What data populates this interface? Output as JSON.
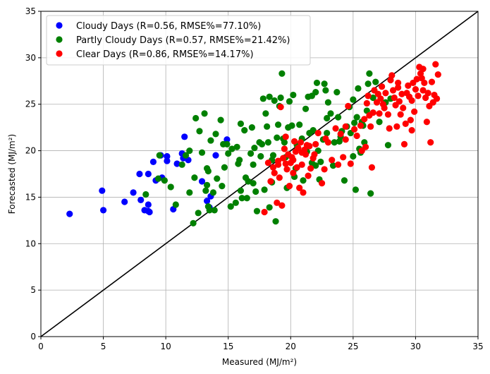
{
  "chart_data": {
    "type": "scatter",
    "xlabel": "Measured (MJ/m²)",
    "ylabel": "Forecasted (MJ/m²)",
    "xlim": [
      0,
      35
    ],
    "ylim": [
      0,
      35
    ],
    "xticks": [
      "0",
      "5",
      "10",
      "15",
      "20",
      "25",
      "30",
      "35"
    ],
    "yticks": [
      "0",
      "5",
      "10",
      "15",
      "20",
      "25",
      "30",
      "35"
    ],
    "grid": true,
    "legend_position": "top-left",
    "reference_line": {
      "from": [
        0,
        0
      ],
      "to": [
        35,
        35
      ],
      "color": "#000000"
    },
    "series": [
      {
        "name": "Cloudy Days (R=0.56, RMSE%=77.10%)",
        "color": "#0000ff",
        "points": [
          [
            2.3,
            13.2
          ],
          [
            4.9,
            15.7
          ],
          [
            5.0,
            13.6
          ],
          [
            6.7,
            14.5
          ],
          [
            7.4,
            15.5
          ],
          [
            7.9,
            17.5
          ],
          [
            8.0,
            14.7
          ],
          [
            8.3,
            13.6
          ],
          [
            8.6,
            17.5
          ],
          [
            8.6,
            14.2
          ],
          [
            8.6,
            13.5
          ],
          [
            8.7,
            13.4
          ],
          [
            9.0,
            18.8
          ],
          [
            9.2,
            16.8
          ],
          [
            9.6,
            19.5
          ],
          [
            9.7,
            17.1
          ],
          [
            10.1,
            19.4
          ],
          [
            10.1,
            18.9
          ],
          [
            10.6,
            13.7
          ],
          [
            10.9,
            18.6
          ],
          [
            11.3,
            19.7
          ],
          [
            11.5,
            21.5
          ],
          [
            11.8,
            19.0
          ],
          [
            12.9,
            16.7
          ],
          [
            13.3,
            14.6
          ],
          [
            13.5,
            13.9
          ],
          [
            13.6,
            15.1
          ],
          [
            14.0,
            19.5
          ],
          [
            14.9,
            21.2
          ],
          [
            11.4,
            19.2
          ]
        ]
      },
      {
        "name": "Partly Cloudy Days (R=0.57, RMSE%=21.42%)",
        "color": "#008000",
        "points": [
          [
            8.4,
            15.3
          ],
          [
            9.4,
            17.0
          ],
          [
            9.5,
            19.5
          ],
          [
            9.9,
            16.8
          ],
          [
            10.4,
            16.1
          ],
          [
            10.8,
            14.2
          ],
          [
            11.3,
            18.5
          ],
          [
            11.6,
            19.5
          ],
          [
            11.9,
            20.0
          ],
          [
            11.9,
            15.5
          ],
          [
            12.2,
            12.2
          ],
          [
            12.3,
            17.1
          ],
          [
            12.4,
            23.5
          ],
          [
            12.6,
            13.3
          ],
          [
            12.7,
            22.1
          ],
          [
            12.9,
            19.8
          ],
          [
            13.1,
            24.0
          ],
          [
            13.2,
            15.7
          ],
          [
            13.3,
            18.1
          ],
          [
            13.3,
            16.3
          ],
          [
            13.4,
            17.8
          ],
          [
            13.4,
            14.0
          ],
          [
            13.5,
            13.6
          ],
          [
            13.6,
            21.1
          ],
          [
            13.8,
            15.5
          ],
          [
            13.9,
            13.6
          ],
          [
            14.0,
            21.8
          ],
          [
            14.1,
            17.0
          ],
          [
            14.4,
            23.3
          ],
          [
            14.5,
            16.2
          ],
          [
            14.6,
            20.7
          ],
          [
            14.7,
            18.2
          ],
          [
            14.9,
            20.7
          ],
          [
            15.0,
            19.7
          ],
          [
            15.2,
            14.0
          ],
          [
            15.3,
            20.2
          ],
          [
            15.6,
            14.4
          ],
          [
            15.7,
            20.4
          ],
          [
            15.8,
            18.6
          ],
          [
            16.0,
            22.9
          ],
          [
            16.0,
            15.7
          ],
          [
            16.1,
            14.9
          ],
          [
            16.3,
            22.2
          ],
          [
            16.4,
            17.1
          ],
          [
            16.5,
            14.9
          ],
          [
            16.6,
            16.7
          ],
          [
            16.8,
            19.7
          ],
          [
            16.9,
            22.5
          ],
          [
            17.0,
            18.5
          ],
          [
            17.0,
            16.5
          ],
          [
            17.1,
            20.3
          ],
          [
            17.2,
            15.6
          ],
          [
            17.3,
            13.5
          ],
          [
            17.5,
            20.9
          ],
          [
            17.6,
            19.4
          ],
          [
            17.8,
            25.6
          ],
          [
            17.9,
            15.8
          ],
          [
            18.0,
            24.0
          ],
          [
            18.1,
            22.6
          ],
          [
            18.2,
            20.9
          ],
          [
            18.3,
            25.8
          ],
          [
            18.3,
            13.9
          ],
          [
            18.5,
            16.6
          ],
          [
            18.6,
            19.5
          ],
          [
            18.7,
            25.4
          ],
          [
            18.8,
            12.4
          ],
          [
            18.9,
            21.4
          ],
          [
            19.0,
            22.8
          ],
          [
            19.1,
            24.8
          ],
          [
            19.2,
            25.7
          ],
          [
            19.3,
            28.3
          ],
          [
            19.4,
            21.3
          ],
          [
            19.6,
            19.3
          ],
          [
            19.7,
            16.0
          ],
          [
            19.8,
            22.5
          ],
          [
            19.9,
            25.3
          ],
          [
            20.1,
            22.7
          ],
          [
            20.2,
            26.0
          ],
          [
            20.3,
            17.2
          ],
          [
            20.5,
            20.6
          ],
          [
            20.7,
            22.8
          ],
          [
            20.9,
            21.3
          ],
          [
            21.0,
            16.8
          ],
          [
            21.2,
            24.5
          ],
          [
            21.3,
            19.9
          ],
          [
            21.4,
            25.8
          ],
          [
            21.5,
            21.9
          ],
          [
            21.7,
            25.9
          ],
          [
            21.8,
            22.2
          ],
          [
            22.0,
            18.4
          ],
          [
            22.0,
            26.3
          ],
          [
            22.1,
            27.3
          ],
          [
            22.2,
            20.0
          ],
          [
            22.3,
            16.9
          ],
          [
            22.4,
            18.8
          ],
          [
            22.6,
            21.2
          ],
          [
            22.7,
            27.2
          ],
          [
            22.8,
            26.5
          ],
          [
            22.9,
            23.5
          ],
          [
            23.0,
            25.2
          ],
          [
            23.2,
            24.0
          ],
          [
            23.4,
            18.4
          ],
          [
            23.5,
            20.9
          ],
          [
            23.7,
            26.3
          ],
          [
            23.8,
            23.6
          ],
          [
            23.9,
            21.0
          ],
          [
            24.1,
            22.1
          ],
          [
            24.3,
            16.8
          ],
          [
            24.5,
            22.6
          ],
          [
            24.7,
            24.7
          ],
          [
            24.8,
            21.9
          ],
          [
            25.0,
            19.4
          ],
          [
            25.0,
            25.5
          ],
          [
            25.1,
            23.0
          ],
          [
            25.2,
            15.8
          ],
          [
            25.3,
            23.6
          ],
          [
            25.4,
            26.7
          ],
          [
            25.5,
            20.2
          ],
          [
            25.6,
            19.8
          ],
          [
            25.7,
            23.1
          ],
          [
            25.8,
            22.7
          ],
          [
            25.9,
            20.9
          ],
          [
            26.1,
            24.3
          ],
          [
            26.2,
            27.2
          ],
          [
            26.3,
            28.3
          ],
          [
            26.4,
            15.4
          ],
          [
            26.6,
            25.7
          ],
          [
            26.8,
            27.4
          ],
          [
            27.1,
            23.1
          ],
          [
            27.6,
            25.2
          ],
          [
            27.8,
            20.6
          ],
          [
            28.0,
            25.6
          ],
          [
            18.5,
            19.0
          ],
          [
            20.4,
            18.1
          ],
          [
            19.5,
            20.9
          ],
          [
            21.7,
            18.7
          ],
          [
            17.7,
            20.7
          ],
          [
            22.9,
            21.9
          ],
          [
            15.9,
            19.0
          ],
          [
            24.0,
            21.5
          ]
        ]
      },
      {
        "name": "Clear Days (R=0.86, RMSE%=14.17%)",
        "color": "#ff0000",
        "points": [
          [
            17.9,
            13.4
          ],
          [
            18.4,
            16.7
          ],
          [
            18.6,
            18.2
          ],
          [
            18.7,
            17.6
          ],
          [
            18.9,
            14.4
          ],
          [
            19.0,
            18.5
          ],
          [
            19.1,
            17.1
          ],
          [
            19.2,
            24.7
          ],
          [
            19.3,
            14.1
          ],
          [
            19.4,
            19.2
          ],
          [
            19.5,
            20.2
          ],
          [
            19.6,
            18.6
          ],
          [
            19.7,
            18.0
          ],
          [
            19.8,
            19.6
          ],
          [
            19.9,
            16.2
          ],
          [
            20.0,
            18.7
          ],
          [
            20.1,
            19.3
          ],
          [
            20.2,
            17.6
          ],
          [
            20.3,
            21.0
          ],
          [
            20.4,
            19.9
          ],
          [
            20.5,
            18.2
          ],
          [
            20.6,
            20.3
          ],
          [
            20.7,
            16.0
          ],
          [
            20.8,
            20.9
          ],
          [
            20.9,
            18.5
          ],
          [
            21.0,
            15.5
          ],
          [
            21.1,
            20.1
          ],
          [
            21.2,
            19.6
          ],
          [
            21.4,
            17.3
          ],
          [
            21.5,
            20.5
          ],
          [
            21.6,
            18.1
          ],
          [
            21.8,
            19.2
          ],
          [
            22.0,
            20.7
          ],
          [
            22.2,
            21.9
          ],
          [
            22.5,
            16.5
          ],
          [
            22.7,
            18.0
          ],
          [
            23.0,
            20.9
          ],
          [
            23.3,
            19.0
          ],
          [
            23.6,
            22.4
          ],
          [
            23.8,
            18.5
          ],
          [
            24.0,
            21.8
          ],
          [
            24.2,
            19.3
          ],
          [
            24.4,
            22.6
          ],
          [
            24.6,
            24.8
          ],
          [
            24.8,
            18.6
          ],
          [
            25.1,
            22.3
          ],
          [
            25.3,
            21.6
          ],
          [
            25.6,
            22.7
          ],
          [
            25.9,
            23.4
          ],
          [
            26.0,
            20.4
          ],
          [
            26.1,
            25.1
          ],
          [
            26.2,
            25.9
          ],
          [
            26.3,
            23.8
          ],
          [
            26.4,
            22.6
          ],
          [
            26.5,
            18.2
          ],
          [
            26.6,
            24.1
          ],
          [
            26.7,
            26.5
          ],
          [
            26.9,
            25.2
          ],
          [
            27.0,
            26.1
          ],
          [
            27.1,
            24.0
          ],
          [
            27.3,
            26.9
          ],
          [
            27.4,
            25.0
          ],
          [
            27.5,
            24.6
          ],
          [
            27.6,
            26.2
          ],
          [
            27.8,
            23.9
          ],
          [
            27.9,
            22.4
          ],
          [
            28.0,
            27.6
          ],
          [
            28.1,
            28.1
          ],
          [
            28.2,
            26.5
          ],
          [
            28.3,
            25.7
          ],
          [
            28.4,
            24.9
          ],
          [
            28.5,
            22.6
          ],
          [
            28.6,
            26.8
          ],
          [
            28.7,
            25.3
          ],
          [
            28.8,
            23.9
          ],
          [
            28.9,
            26.1
          ],
          [
            29.0,
            24.6
          ],
          [
            29.1,
            20.7
          ],
          [
            29.2,
            22.9
          ],
          [
            29.3,
            26.2
          ],
          [
            29.4,
            27.0
          ],
          [
            29.5,
            25.8
          ],
          [
            29.6,
            23.3
          ],
          [
            29.7,
            22.2
          ],
          [
            29.8,
            27.3
          ],
          [
            29.9,
            24.2
          ],
          [
            30.0,
            26.6
          ],
          [
            30.1,
            27.7
          ],
          [
            30.2,
            25.9
          ],
          [
            30.3,
            29.0
          ],
          [
            30.4,
            28.3
          ],
          [
            30.5,
            27.8
          ],
          [
            30.6,
            26.5
          ],
          [
            30.7,
            27.3
          ],
          [
            30.8,
            25.7
          ],
          [
            30.9,
            23.1
          ],
          [
            31.0,
            26.2
          ],
          [
            31.1,
            24.8
          ],
          [
            31.2,
            20.9
          ],
          [
            31.3,
            27.4
          ],
          [
            31.4,
            25.2
          ],
          [
            31.5,
            26.0
          ],
          [
            31.6,
            29.3
          ],
          [
            31.7,
            25.6
          ],
          [
            31.8,
            28.2
          ],
          [
            19.6,
            21.5
          ],
          [
            20.2,
            19.0
          ],
          [
            21.3,
            20.6
          ],
          [
            22.8,
            21.3
          ],
          [
            24.4,
            21.2
          ],
          [
            25.7,
            20.0
          ],
          [
            27.2,
            25.6
          ],
          [
            28.6,
            27.3
          ],
          [
            29.7,
            25.4
          ],
          [
            30.6,
            28.8
          ],
          [
            20.9,
            19.8
          ],
          [
            19.0,
            18.9
          ],
          [
            18.2,
            18.7
          ],
          [
            21.9,
            19.6
          ]
        ]
      }
    ]
  }
}
